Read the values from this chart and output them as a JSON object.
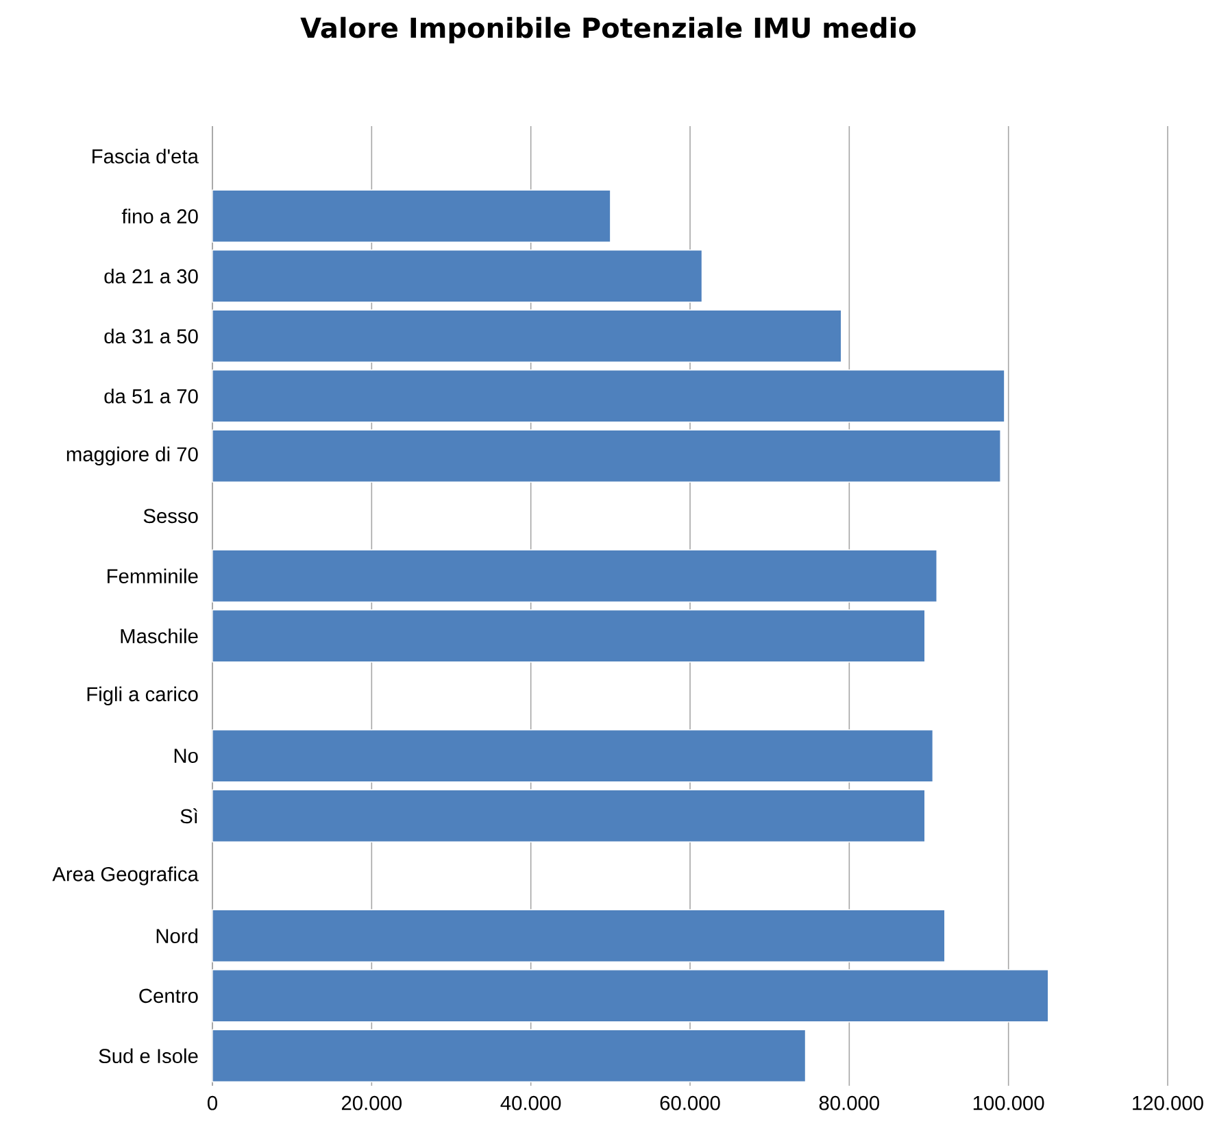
{
  "chart_data": {
    "type": "bar",
    "orientation": "horizontal",
    "title": "Valore Imponibile Potenziale IMU medio",
    "categories": [
      "Fascia d'eta",
      "fino a 20",
      "da 21 a 30",
      "da 31 a 50",
      "da 51 a 70",
      "maggiore di 70",
      "Sesso",
      "Femminile",
      "Maschile",
      "Figli a carico",
      "No",
      "Sì",
      "Area Geografica",
      "Nord",
      "Centro",
      "Sud e Isole"
    ],
    "values": [
      null,
      50000,
      61500,
      79000,
      99500,
      99000,
      null,
      91000,
      89500,
      null,
      90500,
      89500,
      null,
      92000,
      105000,
      74500
    ],
    "color": "#4f81bd",
    "xlim": [
      0,
      120000
    ],
    "xticks": [
      0,
      {
        "value": 20000,
        "label": "20.000"
      },
      {
        "value": 40000,
        "label": "40.000"
      },
      {
        "value": 60000,
        "label": "60.000"
      },
      {
        "value": 80000,
        "label": "80.000"
      },
      {
        "value": 100000,
        "label": "100.000"
      },
      {
        "value": 120000,
        "label": "120.000"
      }
    ],
    "grid": "x"
  }
}
